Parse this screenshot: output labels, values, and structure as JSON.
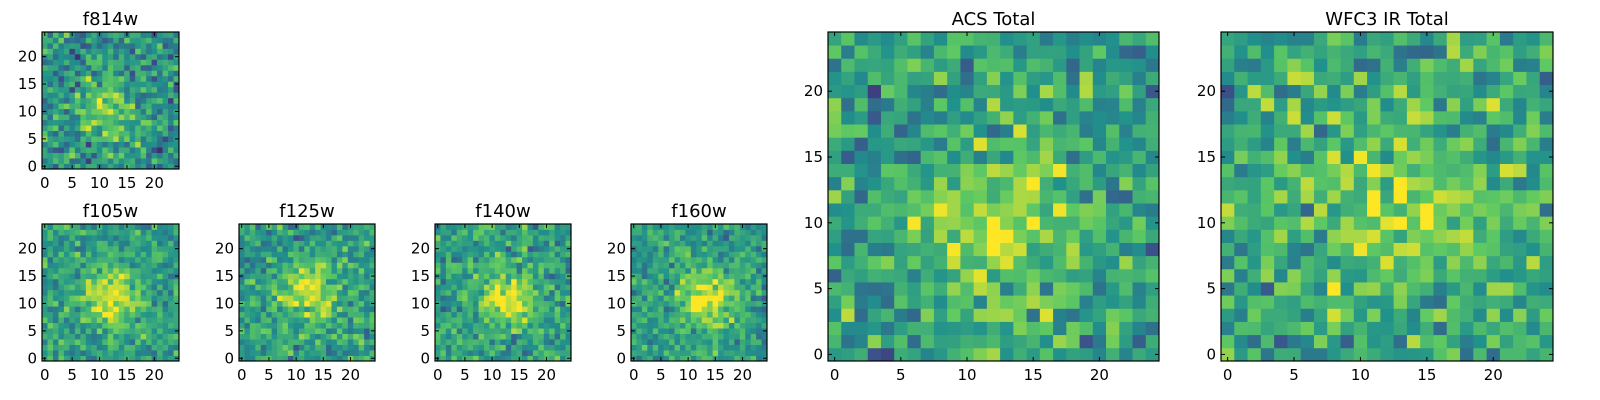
{
  "figure_title": "",
  "colormap": {
    "name": "viridis",
    "stops": [
      "#440154",
      "#3b528b",
      "#21918c",
      "#5ec962",
      "#fde725"
    ]
  },
  "chart_data": [
    {
      "type": "heatmap",
      "title": "f814w",
      "grid": [
        25,
        25
      ],
      "xlim": [
        -0.5,
        24.5
      ],
      "ylim": [
        -0.5,
        24.5
      ],
      "xticks": [
        0,
        5,
        10,
        15,
        20
      ],
      "yticks": [
        0,
        5,
        10,
        15,
        20
      ],
      "tick_labels": {
        "x": [
          "0",
          "5",
          "10",
          "15",
          "20"
        ],
        "y": [
          "0",
          "5",
          "10",
          "15",
          "20"
        ]
      },
      "peak": {
        "x": 11,
        "y": 11
      },
      "peak_level": 0.78,
      "background_level": 0.5,
      "noise": 0.42,
      "spread": 4.5
    },
    {
      "type": "heatmap",
      "title": "f105w",
      "grid": [
        25,
        25
      ],
      "xlim": [
        -0.5,
        24.5
      ],
      "ylim": [
        -0.5,
        24.5
      ],
      "xticks": [
        0,
        5,
        10,
        15,
        20
      ],
      "yticks": [
        0,
        5,
        10,
        15,
        20
      ],
      "tick_labels": {
        "x": [
          "0",
          "5",
          "10",
          "15",
          "20"
        ],
        "y": [
          "0",
          "5",
          "10",
          "15",
          "20"
        ]
      },
      "peak": {
        "x": 12,
        "y": 11
      },
      "peak_level": 0.98,
      "background_level": 0.55,
      "noise": 0.32,
      "spread": 3.5
    },
    {
      "type": "heatmap",
      "title": "f125w",
      "grid": [
        25,
        25
      ],
      "xlim": [
        -0.5,
        24.5
      ],
      "ylim": [
        -0.5,
        24.5
      ],
      "xticks": [
        0,
        5,
        10,
        15,
        20
      ],
      "yticks": [
        0,
        5,
        10,
        15,
        20
      ],
      "tick_labels": {
        "x": [
          "0",
          "5",
          "10",
          "15",
          "20"
        ],
        "y": [
          "0",
          "5",
          "10",
          "15",
          "20"
        ]
      },
      "peak": {
        "x": 12,
        "y": 12
      },
      "peak_level": 0.92,
      "background_level": 0.55,
      "noise": 0.36,
      "spread": 3.8
    },
    {
      "type": "heatmap",
      "title": "f140w",
      "grid": [
        25,
        25
      ],
      "xlim": [
        -0.5,
        24.5
      ],
      "ylim": [
        -0.5,
        24.5
      ],
      "xticks": [
        0,
        5,
        10,
        15,
        20
      ],
      "yticks": [
        0,
        5,
        10,
        15,
        20
      ],
      "tick_labels": {
        "x": [
          "0",
          "5",
          "10",
          "15",
          "20"
        ],
        "y": [
          "0",
          "5",
          "10",
          "15",
          "20"
        ]
      },
      "peak": {
        "x": 13,
        "y": 11
      },
      "peak_level": 0.94,
      "background_level": 0.55,
      "noise": 0.34,
      "spread": 3.8
    },
    {
      "type": "heatmap",
      "title": "f160w",
      "grid": [
        25,
        25
      ],
      "xlim": [
        -0.5,
        24.5
      ],
      "ylim": [
        -0.5,
        24.5
      ],
      "xticks": [
        0,
        5,
        10,
        15,
        20
      ],
      "yticks": [
        0,
        5,
        10,
        15,
        20
      ],
      "tick_labels": {
        "x": [
          "0",
          "5",
          "10",
          "15",
          "20"
        ],
        "y": [
          "0",
          "5",
          "10",
          "15",
          "20"
        ]
      },
      "peak": {
        "x": 13,
        "y": 11
      },
      "peak_level": 0.97,
      "background_level": 0.55,
      "noise": 0.32,
      "spread": 3.6
    },
    {
      "type": "heatmap",
      "title": "ACS Total",
      "grid": [
        25,
        25
      ],
      "xlim": [
        -0.5,
        24.5
      ],
      "ylim": [
        -0.5,
        24.5
      ],
      "xticks": [
        0,
        5,
        10,
        15,
        20
      ],
      "yticks": [
        0,
        5,
        10,
        15,
        20
      ],
      "tick_labels": {
        "x": [
          "0",
          "5",
          "10",
          "15",
          "20"
        ],
        "y": [
          "0",
          "5",
          "10",
          "15",
          "20"
        ]
      },
      "peak": {
        "x": 12,
        "y": 10
      },
      "peak_level": 0.88,
      "background_level": 0.55,
      "noise": 0.4,
      "spread": 4.5
    },
    {
      "type": "heatmap",
      "title": "WFC3 IR Total",
      "grid": [
        25,
        25
      ],
      "xlim": [
        -0.5,
        24.5
      ],
      "ylim": [
        -0.5,
        24.5
      ],
      "xticks": [
        0,
        5,
        10,
        15,
        20
      ],
      "yticks": [
        0,
        5,
        10,
        15,
        20
      ],
      "tick_labels": {
        "x": [
          "0",
          "5",
          "10",
          "15",
          "20"
        ],
        "y": [
          "0",
          "5",
          "10",
          "15",
          "20"
        ]
      },
      "peak": {
        "x": 12,
        "y": 11
      },
      "peak_level": 0.82,
      "background_level": 0.58,
      "noise": 0.42,
      "spread": 5.0
    }
  ]
}
